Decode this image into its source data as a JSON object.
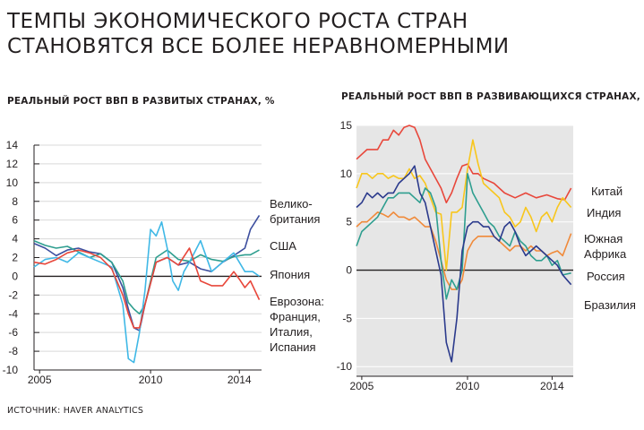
{
  "header": {
    "title_line1": "ТЕМПЫ ЭКОНОМИЧЕСКОГО РОСТА СТРАН",
    "title_line2": "СТАНОВЯТСЯ ВСЕ БОЛЕЕ НЕРАВНОМЕРНЫМИ"
  },
  "footer": {
    "source": "ИСТОЧНИК: HAVER ANALYTICS"
  },
  "chart_data": [
    {
      "type": "line",
      "title": "РЕАЛЬНЫЙ РОСТ ВВП В РАЗВИТЫХ СТРАНАХ, %",
      "xlabel": "",
      "ylabel": "",
      "xlim": [
        2004.75,
        2015.0
      ],
      "ylim": [
        -10,
        14
      ],
      "yticks": [
        14,
        12,
        10,
        8,
        6,
        4,
        2,
        0,
        -2,
        -4,
        -6,
        -8,
        -10
      ],
      "ytick_labels": [
        "14",
        "12",
        "10",
        "8",
        "6",
        "4",
        "2",
        "0",
        "-2",
        "-4",
        "-6",
        "-8",
        "-10"
      ],
      "xticks": [
        2005,
        2010,
        2014
      ],
      "xtick_labels": [
        "2005",
        "2010",
        "2014"
      ],
      "grid": true,
      "series": [
        {
          "name": "Велико-британия",
          "label_lines": [
            "Велико-",
            "британия"
          ],
          "color": "#3d4f9f",
          "x": [
            2004.75,
            2005.25,
            2005.75,
            2006.25,
            2006.75,
            2007.25,
            2007.75,
            2008.25,
            2008.75,
            2009.0,
            2009.25,
            2009.5,
            2009.75,
            2010.25,
            2010.75,
            2011.25,
            2011.75,
            2012.25,
            2012.75,
            2013.25,
            2013.75,
            2014.0,
            2014.25,
            2014.5,
            2014.9
          ],
          "y": [
            3.5,
            3.0,
            2.2,
            2.8,
            3.0,
            2.6,
            2.4,
            1.5,
            -1.2,
            -3.5,
            -5.5,
            -5.8,
            -3.0,
            1.5,
            2.0,
            1.2,
            1.5,
            0.8,
            0.5,
            1.5,
            2.2,
            2.6,
            3.0,
            5.0,
            6.5
          ]
        },
        {
          "name": "США",
          "label_lines": [
            "США"
          ],
          "color": "#2e9e8f",
          "x": [
            2004.75,
            2005.25,
            2005.75,
            2006.25,
            2006.75,
            2007.25,
            2007.75,
            2008.25,
            2008.75,
            2009.0,
            2009.25,
            2009.5,
            2009.75,
            2010.25,
            2010.75,
            2011.25,
            2011.75,
            2012.25,
            2012.75,
            2013.25,
            2013.75,
            2014.25,
            2014.5,
            2014.9
          ],
          "y": [
            3.8,
            3.3,
            3.0,
            3.2,
            2.6,
            2.0,
            2.4,
            1.5,
            -0.5,
            -2.8,
            -3.5,
            -4.0,
            -3.0,
            2.0,
            2.8,
            1.8,
            1.6,
            2.3,
            1.8,
            1.6,
            2.1,
            2.3,
            2.3,
            2.8
          ]
        },
        {
          "name": "Япония",
          "label_lines": [
            "Япония"
          ],
          "color": "#3fb8e6",
          "x": [
            2004.75,
            2005.25,
            2005.75,
            2006.25,
            2006.75,
            2007.25,
            2007.75,
            2008.25,
            2008.75,
            2009.0,
            2009.25,
            2009.5,
            2009.75,
            2010.0,
            2010.25,
            2010.5,
            2010.75,
            2011.0,
            2011.25,
            2011.5,
            2011.75,
            2012.25,
            2012.75,
            2013.25,
            2013.75,
            2014.25,
            2014.6,
            2014.9
          ],
          "y": [
            1.0,
            1.8,
            2.0,
            1.5,
            2.5,
            2.0,
            1.5,
            1.0,
            -3.0,
            -8.8,
            -9.2,
            -6.0,
            -1.5,
            5.0,
            4.3,
            5.8,
            3.0,
            -0.5,
            -1.5,
            0.5,
            1.5,
            3.8,
            0.5,
            1.5,
            2.5,
            0.5,
            0.5,
            0.0
          ]
        },
        {
          "name": "Еврозона: Франция, Италия, Испания",
          "label_lines": [
            "Еврозона:",
            "Франция,",
            "Италия,",
            "Испания"
          ],
          "color": "#e8473b",
          "x": [
            2004.75,
            2005.25,
            2005.75,
            2006.25,
            2006.75,
            2007.25,
            2007.75,
            2008.25,
            2008.75,
            2009.0,
            2009.25,
            2009.5,
            2009.75,
            2010.25,
            2010.75,
            2011.25,
            2011.75,
            2012.25,
            2012.75,
            2013.25,
            2013.75,
            2014.0,
            2014.25,
            2014.5,
            2014.9
          ],
          "y": [
            1.5,
            1.3,
            1.8,
            2.5,
            2.8,
            2.5,
            2.0,
            0.8,
            -2.0,
            -4.0,
            -5.5,
            -5.5,
            -3.0,
            1.5,
            2.0,
            1.2,
            3.0,
            -0.5,
            -1.0,
            -1.0,
            0.5,
            -0.3,
            -1.2,
            -0.5,
            -2.5
          ]
        }
      ]
    },
    {
      "type": "line",
      "title": "РЕАЛЬНЫЙ РОСТ ВВП В РАЗВИВАЮЩИХСЯ СТРАНАХ, %",
      "xlabel": "",
      "ylabel": "",
      "xlim": [
        2004.75,
        2015.0
      ],
      "ylim": [
        -11,
        15
      ],
      "yticks": [
        15,
        10,
        5,
        0,
        -5,
        -10
      ],
      "ytick_labels": [
        "15",
        "10",
        "5",
        "0",
        "-5",
        "-10"
      ],
      "xticks": [
        2005,
        2010,
        2014
      ],
      "xtick_labels": [
        "2005",
        "2010",
        "2014"
      ],
      "grid": true,
      "series": [
        {
          "name": "Китай",
          "label_lines": [
            "Китай"
          ],
          "color": "#e8473b",
          "x": [
            2004.75,
            2005.25,
            2005.75,
            2006.0,
            2006.25,
            2006.5,
            2006.75,
            2007.0,
            2007.25,
            2007.5,
            2007.75,
            2008.0,
            2008.25,
            2008.5,
            2008.75,
            2009.0,
            2009.25,
            2009.5,
            2009.75,
            2010.0,
            2010.25,
            2010.5,
            2010.75,
            2011.25,
            2011.75,
            2012.25,
            2012.75,
            2013.25,
            2013.75,
            2014.25,
            2014.6,
            2014.9
          ],
          "y": [
            11.5,
            12.5,
            12.5,
            13.5,
            13.5,
            14.5,
            14.0,
            14.8,
            15.0,
            14.8,
            13.5,
            11.5,
            10.5,
            9.5,
            8.5,
            7.0,
            8.0,
            9.5,
            10.8,
            11.0,
            10.0,
            10.0,
            9.5,
            9.0,
            8.0,
            7.5,
            8.0,
            7.5,
            7.8,
            7.4,
            7.3,
            8.5
          ]
        },
        {
          "name": "Индия",
          "label_lines": [
            "Индия"
          ],
          "color": "#f8c61c",
          "x": [
            2004.75,
            2005.0,
            2005.25,
            2005.5,
            2005.75,
            2006.0,
            2006.25,
            2006.5,
            2006.75,
            2007.0,
            2007.25,
            2007.5,
            2007.75,
            2008.0,
            2008.25,
            2008.5,
            2008.75,
            2009.0,
            2009.25,
            2009.5,
            2009.75,
            2010.0,
            2010.25,
            2010.5,
            2010.75,
            2011.0,
            2011.25,
            2011.5,
            2011.75,
            2012.0,
            2012.25,
            2012.5,
            2012.75,
            2013.0,
            2013.25,
            2013.5,
            2013.75,
            2014.0,
            2014.25,
            2014.5,
            2014.9
          ],
          "y": [
            8.5,
            10.0,
            10.0,
            9.5,
            10.0,
            10.0,
            9.5,
            9.8,
            9.5,
            9.5,
            10.5,
            9.5,
            9.8,
            9.0,
            7.5,
            6.0,
            5.8,
            0.0,
            6.0,
            6.0,
            6.5,
            10.5,
            13.5,
            11.0,
            9.0,
            8.5,
            8.0,
            7.5,
            6.0,
            5.5,
            4.5,
            5.0,
            6.5,
            5.5,
            4.0,
            5.5,
            6.0,
            5.0,
            6.5,
            7.5,
            6.5
          ]
        },
        {
          "name": "Южная Африка",
          "label_lines": [
            "Южная",
            "Африка"
          ],
          "color": "#f08a3a",
          "x": [
            2004.75,
            2005.0,
            2005.25,
            2005.5,
            2005.75,
            2006.0,
            2006.25,
            2006.5,
            2006.75,
            2007.0,
            2007.25,
            2007.5,
            2007.75,
            2008.0,
            2008.25,
            2008.5,
            2008.75,
            2009.0,
            2009.25,
            2009.5,
            2009.75,
            2010.0,
            2010.25,
            2010.5,
            2010.75,
            2011.0,
            2011.25,
            2011.5,
            2011.75,
            2012.0,
            2012.25,
            2012.5,
            2012.75,
            2013.0,
            2013.25,
            2013.5,
            2013.75,
            2014.0,
            2014.25,
            2014.5,
            2014.9
          ],
          "y": [
            4.5,
            5.0,
            5.0,
            5.5,
            6.0,
            5.8,
            5.5,
            6.0,
            5.5,
            5.5,
            5.2,
            5.5,
            5.0,
            4.5,
            4.5,
            3.0,
            1.0,
            -1.0,
            -2.0,
            -2.0,
            -1.0,
            2.0,
            3.0,
            3.5,
            3.5,
            3.5,
            3.5,
            3.0,
            2.5,
            2.0,
            2.5,
            2.5,
            2.0,
            2.5,
            2.0,
            2.0,
            1.5,
            1.8,
            2.0,
            1.5,
            3.8
          ]
        },
        {
          "name": "Россия",
          "label_lines": [
            "Россия"
          ],
          "color": "#2e9e8f",
          "x": [
            2004.75,
            2005.0,
            2005.25,
            2005.5,
            2005.75,
            2006.0,
            2006.25,
            2006.5,
            2006.75,
            2007.0,
            2007.25,
            2007.5,
            2007.75,
            2008.0,
            2008.25,
            2008.5,
            2008.75,
            2009.0,
            2009.25,
            2009.5,
            2009.75,
            2010.0,
            2010.25,
            2010.5,
            2010.75,
            2011.0,
            2011.25,
            2011.5,
            2011.75,
            2012.0,
            2012.25,
            2012.5,
            2012.75,
            2013.0,
            2013.25,
            2013.5,
            2013.75,
            2014.0,
            2014.25,
            2014.5,
            2014.9
          ],
          "y": [
            2.5,
            4.0,
            4.5,
            5.0,
            5.5,
            6.5,
            7.5,
            7.5,
            8.0,
            8.0,
            8.0,
            7.5,
            7.0,
            8.5,
            8.0,
            6.5,
            1.0,
            -3.0,
            -1.0,
            -2.0,
            0.0,
            10.0,
            8.0,
            7.0,
            6.0,
            5.0,
            4.5,
            3.5,
            3.0,
            2.5,
            4.0,
            3.0,
            2.5,
            1.5,
            1.0,
            1.0,
            1.5,
            0.5,
            1.0,
            -0.5,
            -0.3
          ]
        },
        {
          "name": "Бразилия",
          "label_lines": [
            "Бразилия"
          ],
          "color": "#2b3a8c",
          "x": [
            2004.75,
            2005.0,
            2005.25,
            2005.5,
            2005.75,
            2006.0,
            2006.25,
            2006.5,
            2006.75,
            2007.0,
            2007.25,
            2007.5,
            2007.75,
            2008.0,
            2008.25,
            2008.5,
            2008.75,
            2009.0,
            2009.25,
            2009.5,
            2009.75,
            2010.0,
            2010.25,
            2010.5,
            2010.75,
            2011.0,
            2011.25,
            2011.5,
            2011.75,
            2012.0,
            2012.25,
            2012.5,
            2012.75,
            2013.0,
            2013.25,
            2013.5,
            2013.75,
            2014.0,
            2014.25,
            2014.5,
            2014.9
          ],
          "y": [
            6.5,
            7.0,
            8.0,
            7.5,
            8.0,
            7.5,
            8.0,
            8.0,
            9.0,
            9.5,
            10.0,
            10.8,
            8.0,
            7.0,
            4.5,
            2.0,
            -0.5,
            -7.5,
            -9.5,
            -5.0,
            2.0,
            4.5,
            5.0,
            5.0,
            4.5,
            4.5,
            3.5,
            3.0,
            4.5,
            5.0,
            4.0,
            2.5,
            1.5,
            2.0,
            2.5,
            2.0,
            1.5,
            1.0,
            0.5,
            -0.5,
            -1.5
          ]
        }
      ]
    }
  ]
}
